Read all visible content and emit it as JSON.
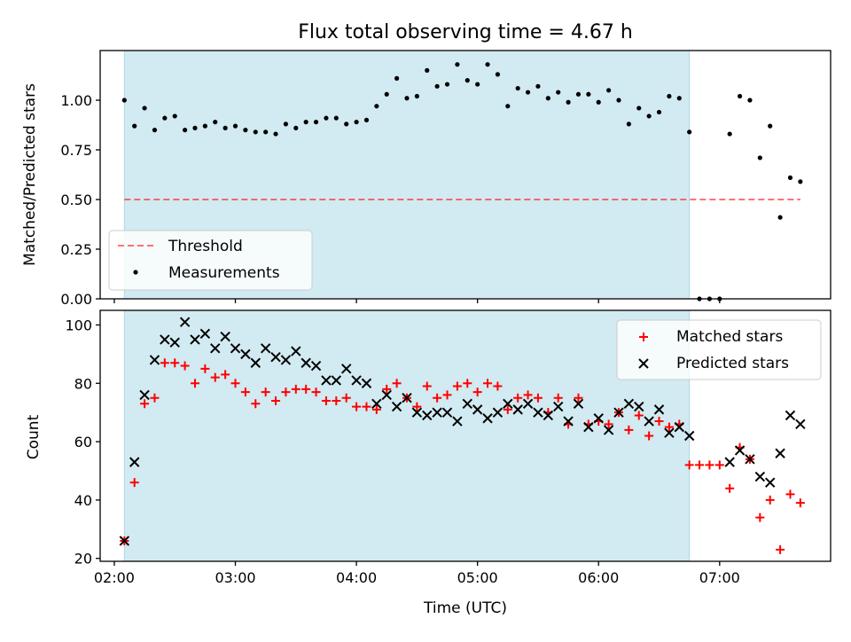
{
  "title": "Flux total observing time = 4.67 h",
  "colors": {
    "shade": "#add8e6",
    "threshold": "#ff0000",
    "measurement": "#000000",
    "matched": "#ff0000",
    "predicted": "#000000"
  },
  "chart_data": [
    {
      "type": "scatter",
      "name": "ratio-panel",
      "ylabel": "Matched/Predicted stars",
      "xlabel": "",
      "ylim": [
        0,
        1.25
      ],
      "yticks": [
        0,
        0.25,
        0.5,
        0.75,
        1.0
      ],
      "ytick_labels": [
        "0.00",
        "0.25",
        "0.50",
        "0.75",
        "1.00"
      ],
      "shaded_interval": [
        "02:05",
        "06:45"
      ],
      "threshold": {
        "name": "Threshold",
        "value": 0.5,
        "x": [
          "02:05",
          "07:40"
        ]
      },
      "legend": {
        "placement": "lower-left",
        "entries": [
          "Threshold",
          "Measurements"
        ]
      },
      "series": [
        {
          "name": "Measurements",
          "marker": "dot",
          "x": [
            "02:05",
            "02:10",
            "02:15",
            "02:20",
            "02:25",
            "02:30",
            "02:35",
            "02:40",
            "02:45",
            "02:50",
            "02:55",
            "03:00",
            "03:05",
            "03:10",
            "03:15",
            "03:20",
            "03:25",
            "03:30",
            "03:35",
            "03:40",
            "03:45",
            "03:50",
            "03:55",
            "04:00",
            "04:05",
            "04:10",
            "04:15",
            "04:20",
            "04:25",
            "04:30",
            "04:35",
            "04:40",
            "04:45",
            "04:50",
            "04:55",
            "05:00",
            "05:05",
            "05:10",
            "05:15",
            "05:20",
            "05:25",
            "05:30",
            "05:35",
            "05:40",
            "05:45",
            "05:50",
            "05:55",
            "06:00",
            "06:05",
            "06:10",
            "06:15",
            "06:20",
            "06:25",
            "06:30",
            "06:35",
            "06:40",
            "06:45",
            "06:50",
            "06:55",
            "07:00",
            "07:05",
            "07:10",
            "07:15",
            "07:20",
            "07:25",
            "07:30",
            "07:35",
            "07:40"
          ],
          "y": [
            1.0,
            0.87,
            0.96,
            0.85,
            0.91,
            0.92,
            0.85,
            0.86,
            0.87,
            0.89,
            0.86,
            0.87,
            0.85,
            0.84,
            0.84,
            0.83,
            0.88,
            0.86,
            0.89,
            0.89,
            0.91,
            0.91,
            0.88,
            0.89,
            0.9,
            0.97,
            1.03,
            1.11,
            1.01,
            1.02,
            1.15,
            1.07,
            1.08,
            1.18,
            1.1,
            1.08,
            1.18,
            1.13,
            0.97,
            1.06,
            1.04,
            1.07,
            1.01,
            1.04,
            0.99,
            1.03,
            1.03,
            0.99,
            1.05,
            1.0,
            0.88,
            0.96,
            0.92,
            0.94,
            1.02,
            1.01,
            0.84,
            0.0,
            0.0,
            0.0,
            0.83,
            1.02,
            1.0,
            0.71,
            0.87,
            0.41,
            0.61,
            0.59
          ]
        }
      ]
    },
    {
      "type": "scatter",
      "name": "count-panel",
      "ylabel": "Count",
      "xlabel": "Time (UTC)",
      "ylim": [
        19,
        105
      ],
      "yticks": [
        20,
        40,
        60,
        80,
        100
      ],
      "ytick_labels": [
        "20",
        "40",
        "60",
        "80",
        "100"
      ],
      "xlim": [
        "01:53",
        "07:55"
      ],
      "xticks": [
        "02:00",
        "03:00",
        "04:00",
        "05:00",
        "06:00",
        "07:00"
      ],
      "xtick_labels": [
        "02:00",
        "03:00",
        "04:00",
        "05:00",
        "06:00",
        "07:00"
      ],
      "shaded_interval": [
        "02:05",
        "06:45"
      ],
      "legend": {
        "placement": "top-right",
        "entries": [
          "Matched stars",
          "Predicted stars"
        ]
      },
      "series": [
        {
          "name": "Matched stars",
          "marker": "plus",
          "x": [
            "02:05",
            "02:10",
            "02:15",
            "02:20",
            "02:25",
            "02:30",
            "02:35",
            "02:40",
            "02:45",
            "02:50",
            "02:55",
            "03:00",
            "03:05",
            "03:10",
            "03:15",
            "03:20",
            "03:25",
            "03:30",
            "03:35",
            "03:40",
            "03:45",
            "03:50",
            "03:55",
            "04:00",
            "04:05",
            "04:10",
            "04:15",
            "04:20",
            "04:25",
            "04:30",
            "04:35",
            "04:40",
            "04:45",
            "04:50",
            "04:55",
            "05:00",
            "05:05",
            "05:10",
            "05:15",
            "05:20",
            "05:25",
            "05:30",
            "05:35",
            "05:40",
            "05:45",
            "05:50",
            "05:55",
            "06:00",
            "06:05",
            "06:10",
            "06:15",
            "06:20",
            "06:25",
            "06:30",
            "06:35",
            "06:40",
            "06:45",
            "06:50",
            "06:55",
            "07:00",
            "07:05",
            "07:10",
            "07:15",
            "07:20",
            "07:25",
            "07:30",
            "07:35",
            "07:40"
          ],
          "y": [
            26,
            46,
            73,
            75,
            87,
            87,
            86,
            80,
            85,
            82,
            83,
            80,
            77,
            73,
            77,
            74,
            77,
            78,
            78,
            77,
            74,
            74,
            75,
            72,
            72,
            71,
            78,
            80,
            75,
            72,
            79,
            75,
            76,
            79,
            80,
            77,
            80,
            79,
            71,
            75,
            76,
            75,
            70,
            75,
            66,
            75,
            66,
            67,
            66,
            70,
            64,
            69,
            62,
            67,
            65,
            66,
            52,
            52,
            52,
            52,
            44,
            58,
            54,
            34,
            40,
            23,
            42,
            39
          ]
        },
        {
          "name": "Predicted stars",
          "marker": "x",
          "x": [
            "02:05",
            "02:10",
            "02:15",
            "02:20",
            "02:25",
            "02:30",
            "02:35",
            "02:40",
            "02:45",
            "02:50",
            "02:55",
            "03:00",
            "03:05",
            "03:10",
            "03:15",
            "03:20",
            "03:25",
            "03:30",
            "03:35",
            "03:40",
            "03:45",
            "03:50",
            "03:55",
            "04:00",
            "04:05",
            "04:10",
            "04:15",
            "04:20",
            "04:25",
            "04:30",
            "04:35",
            "04:40",
            "04:45",
            "04:50",
            "04:55",
            "05:00",
            "05:05",
            "05:10",
            "05:15",
            "05:20",
            "05:25",
            "05:30",
            "05:35",
            "05:40",
            "05:45",
            "05:50",
            "05:55",
            "06:00",
            "06:05",
            "06:10",
            "06:15",
            "06:20",
            "06:25",
            "06:30",
            "06:35",
            "06:40",
            "06:45",
            "07:05",
            "07:10",
            "07:15",
            "07:20",
            "07:25",
            "07:30",
            "07:35",
            "07:40"
          ],
          "y": [
            26,
            53,
            76,
            88,
            95,
            94,
            101,
            95,
            97,
            92,
            96,
            92,
            90,
            87,
            92,
            89,
            88,
            91,
            87,
            86,
            81,
            81,
            85,
            81,
            80,
            73,
            76,
            72,
            75,
            70,
            69,
            70,
            70,
            67,
            73,
            71,
            68,
            70,
            73,
            71,
            73,
            70,
            69,
            72,
            67,
            73,
            65,
            68,
            64,
            70,
            73,
            72,
            67,
            71,
            63,
            65,
            62,
            53,
            57,
            54,
            48,
            46,
            56,
            69,
            66
          ]
        }
      ]
    }
  ]
}
